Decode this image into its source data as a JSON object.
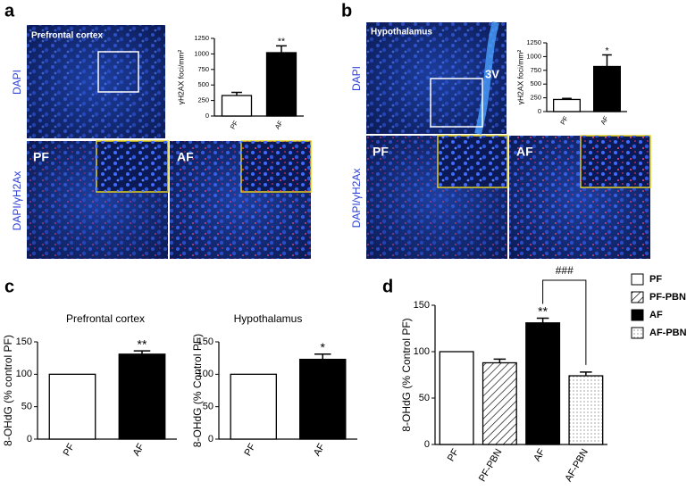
{
  "panel_labels": [
    "a",
    "b",
    "c",
    "d"
  ],
  "images": [
    {
      "region": "Prefrontal cortex",
      "stain_top": "DAPI",
      "stain_bottom": "DAPI/γH2Ax",
      "left": "PF",
      "right": "AF"
    },
    {
      "region": "Hypothalamus",
      "landmark": "3V",
      "stain_top": "DAPI",
      "stain_bottom": "DAPI/γH2Ax",
      "left": "PF",
      "right": "AF"
    }
  ],
  "chart_data": [
    {
      "type": "bar",
      "ylabel": "γH2AX foci/mm²",
      "categories": [
        "PF",
        "AF"
      ],
      "values": [
        330,
        1020
      ],
      "errors": [
        50,
        110
      ],
      "annotations": [
        null,
        "**"
      ],
      "colors": [
        "#ffffff",
        "#000000"
      ],
      "ylim": [
        0,
        1250
      ],
      "yticks": [
        0,
        250,
        500,
        750,
        1000,
        1250
      ]
    },
    {
      "type": "bar",
      "ylabel": "γH2AX foci/mm²",
      "categories": [
        "PF",
        "AF"
      ],
      "values": [
        220,
        820
      ],
      "errors": [
        20,
        210
      ],
      "annotations": [
        null,
        "*"
      ],
      "colors": [
        "#ffffff",
        "#000000"
      ],
      "ylim": [
        0,
        1250
      ],
      "yticks": [
        0,
        250,
        500,
        750,
        1000,
        1250
      ]
    },
    {
      "type": "bar",
      "title": "Prefrontal cortex",
      "ylabel": "8-OHdG (% control PF)",
      "categories": [
        "PF",
        "AF"
      ],
      "values": [
        100,
        131
      ],
      "errors": [
        null,
        5
      ],
      "annotations": [
        null,
        "**"
      ],
      "colors": [
        "#ffffff",
        "#000000"
      ],
      "ylim": [
        0,
        150
      ],
      "yticks": [
        0,
        50,
        100,
        150
      ]
    },
    {
      "type": "bar",
      "title": "Hypothalamus",
      "ylabel": "8-OHdG (% Control PF)",
      "categories": [
        "PF",
        "AF"
      ],
      "values": [
        100,
        123
      ],
      "errors": [
        null,
        8
      ],
      "annotations": [
        null,
        "*"
      ],
      "colors": [
        "#ffffff",
        "#000000"
      ],
      "ylim": [
        0,
        150
      ],
      "yticks": [
        0,
        50,
        100,
        150
      ]
    },
    {
      "type": "bar",
      "ylabel": "8-OHdG (% Control PF)",
      "categories": [
        "PF",
        "PF-PBN",
        "AF",
        "AF-PBN"
      ],
      "values": [
        100,
        88,
        131,
        74
      ],
      "errors": [
        null,
        4,
        5,
        4
      ],
      "annotations": [
        null,
        null,
        "**",
        null
      ],
      "colors": [
        "#ffffff",
        "#ffffff",
        "#000000",
        "#ffffff"
      ],
      "patterns": [
        null,
        "hatch",
        null,
        "dots"
      ],
      "bracket": {
        "label": "###",
        "categories": [
          "AF",
          "AF-PBN"
        ]
      },
      "ylim": [
        0,
        150
      ],
      "yticks": [
        0,
        50,
        100,
        150
      ],
      "legend": "right"
    }
  ]
}
